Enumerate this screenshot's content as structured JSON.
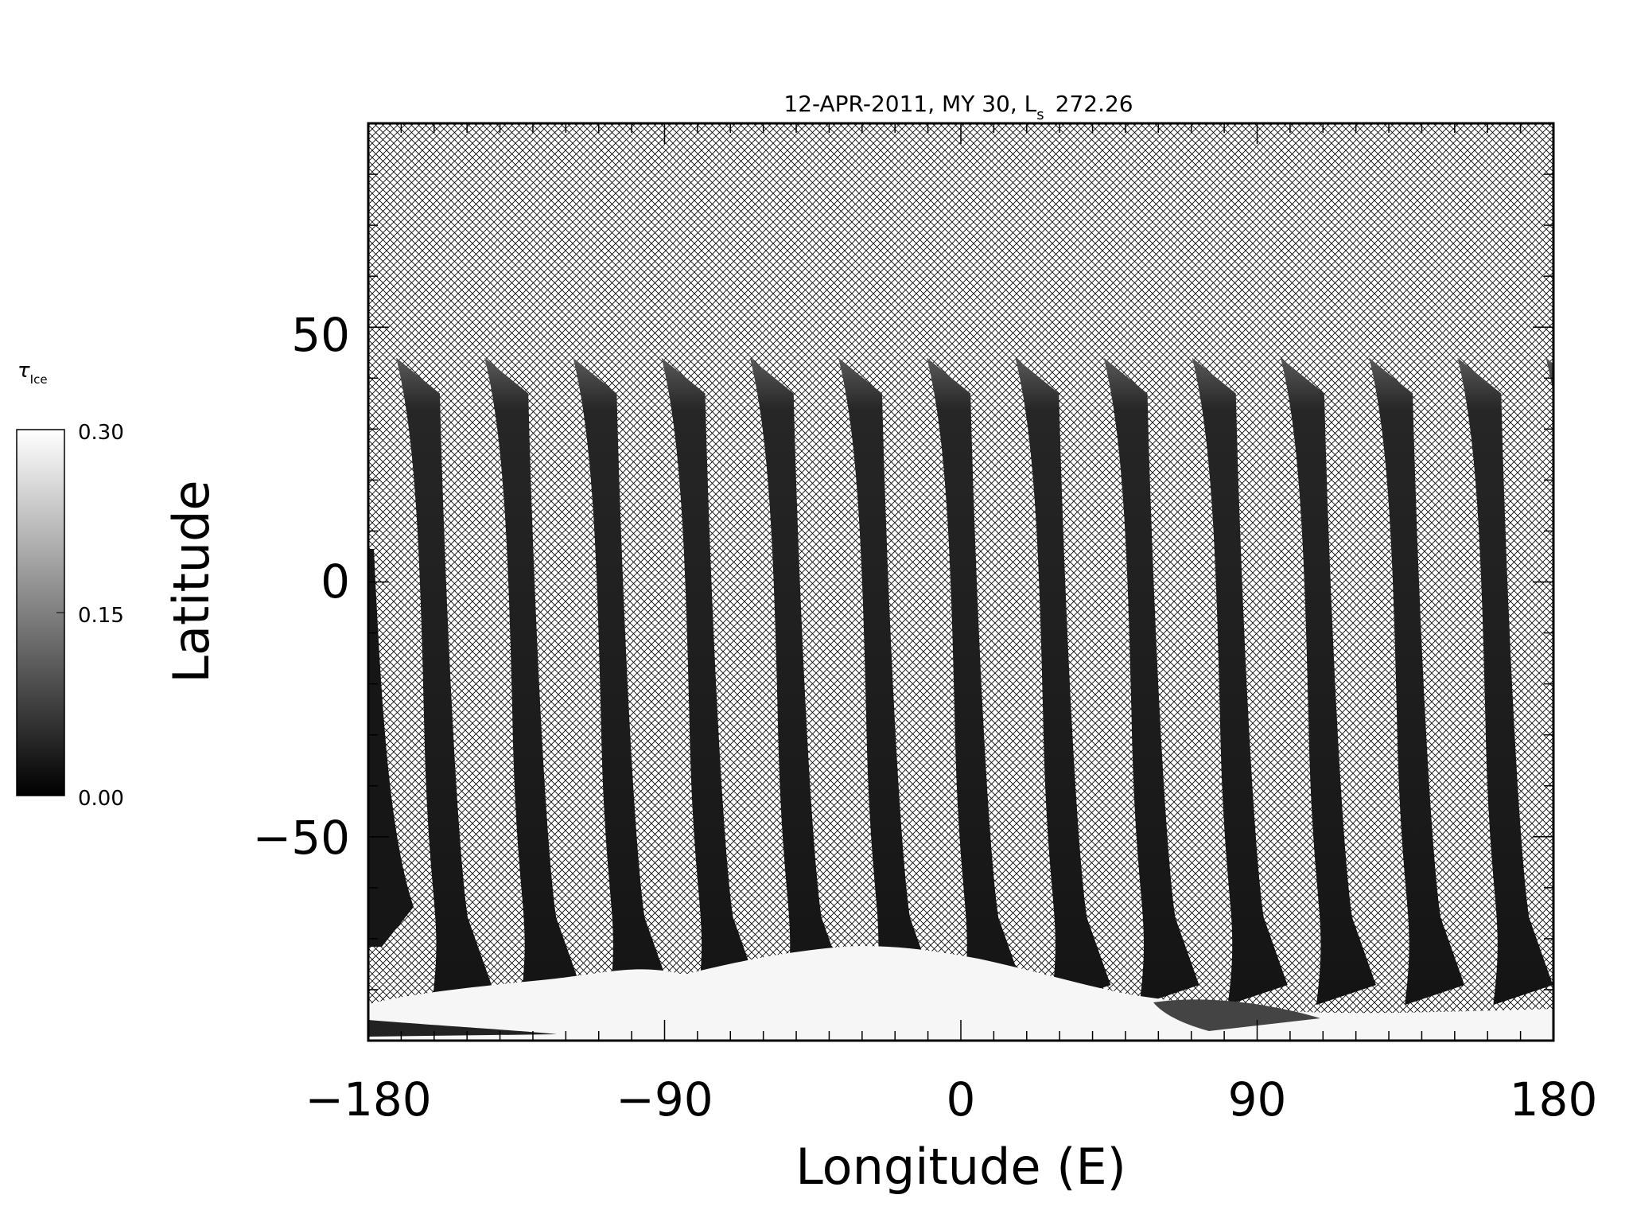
{
  "title_prefix": "12-APR-2011, MY 30,  L",
  "title_sub": "s",
  "title_value": "272.26",
  "x_axis": {
    "label": "Longitude (E)",
    "range": [
      -180,
      180
    ],
    "ticks": [
      "−180",
      "−90",
      "0",
      "90",
      "180"
    ],
    "tick_values": [
      -180,
      -90,
      0,
      90,
      180
    ]
  },
  "y_axis": {
    "label": "Latitude",
    "range": [
      -90,
      90
    ],
    "ticks": [
      "50",
      "0",
      "−50"
    ],
    "tick_values": [
      50,
      0,
      -50
    ]
  },
  "colorbar": {
    "symbol": "τ",
    "subscript": "Ice",
    "ticks": [
      "0.30",
      "0.15",
      "0.00"
    ],
    "tick_values": [
      0.3,
      0.15,
      0.0
    ],
    "range": [
      0.0,
      0.3
    ]
  },
  "swaths": {
    "count": 14,
    "description_free": true,
    "top_latitude": 44,
    "bottom_latitude": -83
  },
  "colors": {
    "swath": "#161616",
    "polar_cap": "#f6f6f6",
    "hatch": "#000000",
    "background": "#ffffff"
  }
}
